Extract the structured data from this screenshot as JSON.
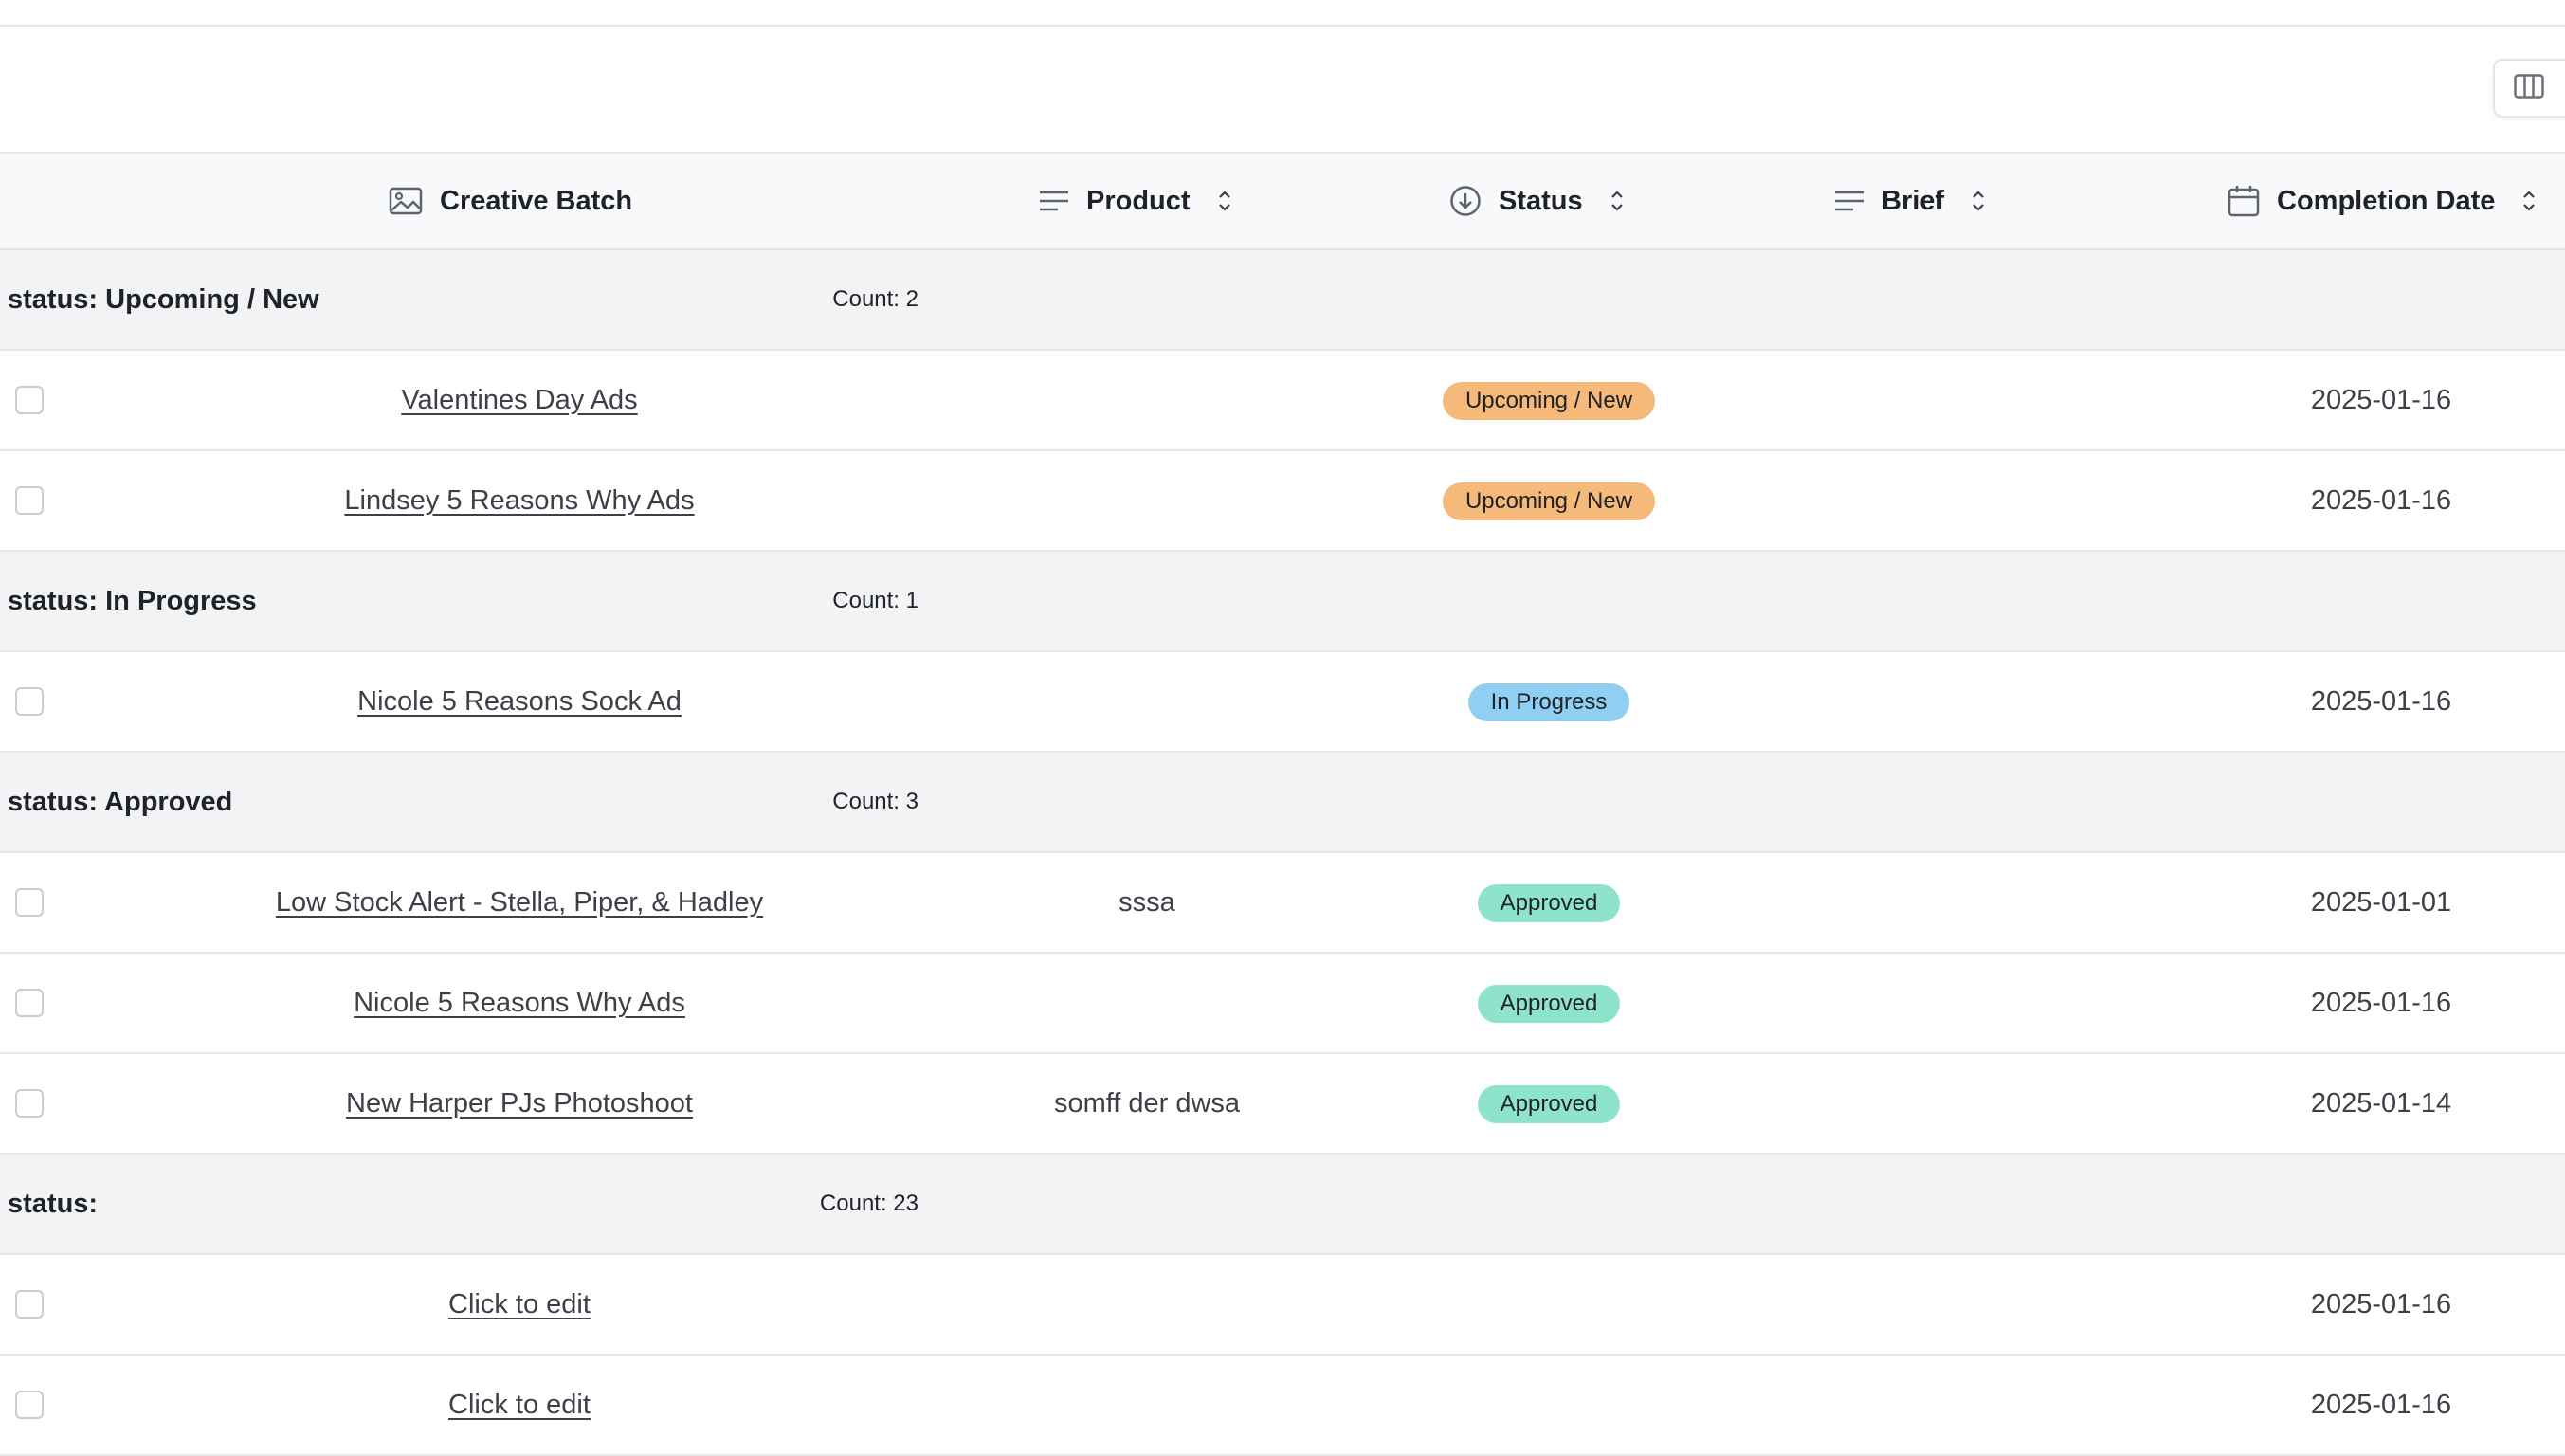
{
  "columns": [
    {
      "label": "Creative Batch",
      "icon": "image-icon"
    },
    {
      "label": "Product",
      "icon": "text-lines-icon"
    },
    {
      "label": "Status",
      "icon": "circle-arrow-down-icon"
    },
    {
      "label": "Brief",
      "icon": "text-lines-icon"
    },
    {
      "label": "Completion Date",
      "icon": "calendar-icon"
    }
  ],
  "colors": {
    "upcoming": "#f5b97a",
    "in_progress": "#8fcff3",
    "approved": "#8ee3cc"
  },
  "groups": [
    {
      "label": "status: Upcoming / New",
      "count": "Count: 2",
      "rows": [
        {
          "batch": "Valentines Day Ads",
          "product": "",
          "status": "Upcoming / New",
          "status_key": "upcoming",
          "brief": "",
          "date": "2025-01-16"
        },
        {
          "batch": "Lindsey 5 Reasons Why Ads",
          "product": "",
          "status": "Upcoming / New",
          "status_key": "upcoming",
          "brief": "",
          "date": "2025-01-16"
        }
      ]
    },
    {
      "label": "status: In Progress",
      "count": "Count: 1",
      "rows": [
        {
          "batch": "Nicole 5 Reasons Sock Ad",
          "product": "",
          "status": "In Progress",
          "status_key": "in_progress",
          "brief": "",
          "date": "2025-01-16"
        }
      ]
    },
    {
      "label": "status: Approved",
      "count": "Count: 3",
      "rows": [
        {
          "batch": "Low Stock Alert - Stella, Piper, & Hadley",
          "product": "sssa",
          "status": "Approved",
          "status_key": "approved",
          "brief": "",
          "date": "2025-01-01"
        },
        {
          "batch": "Nicole 5 Reasons Why Ads",
          "product": "",
          "status": "Approved",
          "status_key": "approved",
          "brief": "",
          "date": "2025-01-16"
        },
        {
          "batch": "New Harper PJs Photoshoot",
          "product": "somff der dwsa",
          "status": "Approved",
          "status_key": "approved",
          "brief": "",
          "date": "2025-01-14"
        }
      ]
    },
    {
      "label": "status:",
      "count": "Count: 23",
      "rows": [
        {
          "batch": "Click to edit",
          "product": "",
          "status": "",
          "status_key": "",
          "brief": "",
          "date": "2025-01-16"
        },
        {
          "batch": "Click to edit",
          "product": "",
          "status": "",
          "status_key": "",
          "brief": "",
          "date": "2025-01-16"
        }
      ]
    }
  ]
}
